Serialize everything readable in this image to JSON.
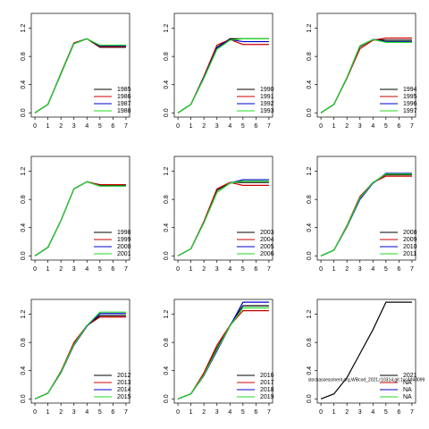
{
  "chart_data": [
    {
      "type": "line",
      "x": [
        0,
        1,
        2,
        3,
        4,
        5,
        6,
        7
      ],
      "xlim": [
        -0.28,
        7.28
      ],
      "ylim": [
        -0.06,
        1.41
      ],
      "xticks": [
        0,
        1,
        2,
        3,
        4,
        5,
        6,
        7
      ],
      "yticks": [
        {
          "value": 0,
          "label": "0.0"
        },
        {
          "value": 0.4,
          "label": "0.4"
        },
        {
          "value": 0.8,
          "label": "0.8"
        },
        {
          "value": 1.2,
          "label": "1.2"
        }
      ],
      "series": [
        {
          "name": "1985",
          "color": "#000000",
          "values": [
            0,
            0.12,
            0.56,
            0.99,
            1.05,
            0.93,
            0.93,
            0.93
          ]
        },
        {
          "name": "1986",
          "color": "#cc0000",
          "values": [
            0,
            0.12,
            0.56,
            0.99,
            1.05,
            0.94,
            0.94,
            0.94
          ]
        },
        {
          "name": "1987",
          "color": "#0000cc",
          "values": [
            0,
            0.12,
            0.55,
            0.98,
            1.05,
            0.95,
            0.95,
            0.95
          ]
        },
        {
          "name": "1988",
          "color": "#22dd22",
          "values": [
            0,
            0.12,
            0.55,
            0.98,
            1.05,
            0.96,
            0.96,
            0.96
          ]
        }
      ]
    },
    {
      "type": "line",
      "x": [
        0,
        1,
        2,
        3,
        4,
        5,
        6,
        7
      ],
      "xlim": [
        -0.28,
        7.28
      ],
      "ylim": [
        -0.06,
        1.41
      ],
      "xticks": [
        0,
        1,
        2,
        3,
        4,
        5,
        6,
        7
      ],
      "yticks": [
        {
          "value": 0,
          "label": "0.0"
        },
        {
          "value": 0.4,
          "label": "0.4"
        },
        {
          "value": 0.8,
          "label": "0.8"
        },
        {
          "value": 1.2,
          "label": "1.2"
        }
      ],
      "series": [
        {
          "name": "1990",
          "color": "#000000",
          "values": [
            0,
            0.12,
            0.5,
            0.93,
            1.05,
            1.05,
            1.05,
            1.05
          ]
        },
        {
          "name": "1991",
          "color": "#cc0000",
          "values": [
            0,
            0.12,
            0.52,
            0.96,
            1.04,
            0.97,
            0.97,
            0.97
          ]
        },
        {
          "name": "1992",
          "color": "#0000cc",
          "values": [
            0,
            0.12,
            0.5,
            0.92,
            1.04,
            1.01,
            1.01,
            1.01
          ]
        },
        {
          "name": "1993",
          "color": "#22dd22",
          "values": [
            0,
            0.12,
            0.49,
            0.9,
            1.03,
            1.05,
            1.05,
            1.05
          ]
        }
      ]
    },
    {
      "type": "line",
      "x": [
        0,
        1,
        2,
        3,
        4,
        5,
        6,
        7
      ],
      "xlim": [
        -0.28,
        7.28
      ],
      "ylim": [
        -0.06,
        1.41
      ],
      "xticks": [
        0,
        1,
        2,
        3,
        4,
        5,
        6,
        7
      ],
      "yticks": [
        {
          "value": 0,
          "label": "0.0"
        },
        {
          "value": 0.4,
          "label": "0.4"
        },
        {
          "value": 0.8,
          "label": "0.8"
        },
        {
          "value": 1.2,
          "label": "1.2"
        }
      ],
      "series": [
        {
          "name": "1994",
          "color": "#000000",
          "values": [
            0,
            0.12,
            0.5,
            0.94,
            1.04,
            1.03,
            1.03,
            1.03
          ]
        },
        {
          "name": "1995",
          "color": "#cc0000",
          "values": [
            0,
            0.12,
            0.49,
            0.91,
            1.03,
            1.06,
            1.06,
            1.06
          ]
        },
        {
          "name": "1996",
          "color": "#0000cc",
          "values": [
            0,
            0.12,
            0.5,
            0.95,
            1.04,
            1.01,
            1.01,
            1.01
          ]
        },
        {
          "name": "1997",
          "color": "#22dd22",
          "values": [
            0,
            0.12,
            0.5,
            0.95,
            1.04,
            1.0,
            1.0,
            1.0
          ]
        }
      ]
    },
    {
      "type": "line",
      "x": [
        0,
        1,
        2,
        3,
        4,
        5,
        6,
        7
      ],
      "xlim": [
        -0.28,
        7.28
      ],
      "ylim": [
        -0.06,
        1.41
      ],
      "xticks": [
        0,
        1,
        2,
        3,
        4,
        5,
        6,
        7
      ],
      "yticks": [
        {
          "value": 0,
          "label": "0.0"
        },
        {
          "value": 0.4,
          "label": "0.4"
        },
        {
          "value": 0.8,
          "label": "0.8"
        },
        {
          "value": 1.2,
          "label": "1.2"
        }
      ],
      "series": [
        {
          "name": "1998",
          "color": "#000000",
          "values": [
            0,
            0.12,
            0.5,
            0.95,
            1.05,
            1.0,
            1.0,
            1.0
          ]
        },
        {
          "name": "1999",
          "color": "#cc0000",
          "values": [
            0,
            0.12,
            0.5,
            0.95,
            1.05,
            1.01,
            1.01,
            1.01
          ]
        },
        {
          "name": "2000",
          "color": "#0000cc",
          "values": [
            0,
            0.12,
            0.5,
            0.95,
            1.05,
            0.99,
            0.99,
            0.99
          ]
        },
        {
          "name": "2001",
          "color": "#22dd22",
          "values": [
            0,
            0.12,
            0.5,
            0.95,
            1.05,
            0.99,
            0.99,
            0.99
          ]
        }
      ]
    },
    {
      "type": "line",
      "x": [
        0,
        1,
        2,
        3,
        4,
        5,
        6,
        7
      ],
      "xlim": [
        -0.28,
        7.28
      ],
      "ylim": [
        -0.06,
        1.41
      ],
      "xticks": [
        0,
        1,
        2,
        3,
        4,
        5,
        6,
        7
      ],
      "yticks": [
        {
          "value": 0,
          "label": "0.0"
        },
        {
          "value": 0.4,
          "label": "0.4"
        },
        {
          "value": 0.8,
          "label": "0.8"
        },
        {
          "value": 1.2,
          "label": "1.2"
        }
      ],
      "series": [
        {
          "name": "2003",
          "color": "#000000",
          "values": [
            0,
            0.1,
            0.48,
            0.93,
            1.04,
            1.04,
            1.04,
            1.04
          ]
        },
        {
          "name": "2004",
          "color": "#cc0000",
          "values": [
            0,
            0.1,
            0.49,
            0.95,
            1.04,
            1.0,
            1.0,
            1.0
          ]
        },
        {
          "name": "2005",
          "color": "#0000cc",
          "values": [
            0,
            0.1,
            0.47,
            0.9,
            1.03,
            1.08,
            1.08,
            1.08
          ]
        },
        {
          "name": "2006",
          "color": "#22dd22",
          "values": [
            0,
            0.1,
            0.47,
            0.9,
            1.03,
            1.06,
            1.06,
            1.06
          ]
        }
      ]
    },
    {
      "type": "line",
      "x": [
        0,
        1,
        2,
        3,
        4,
        5,
        6,
        7
      ],
      "xlim": [
        -0.28,
        7.28
      ],
      "ylim": [
        -0.06,
        1.41
      ],
      "xticks": [
        0,
        1,
        2,
        3,
        4,
        5,
        6,
        7
      ],
      "yticks": [
        {
          "value": 0,
          "label": "0.0"
        },
        {
          "value": 0.4,
          "label": "0.4"
        },
        {
          "value": 0.8,
          "label": "0.8"
        },
        {
          "value": 1.2,
          "label": "1.2"
        }
      ],
      "series": [
        {
          "name": "2008",
          "color": "#000000",
          "values": [
            0,
            0.08,
            0.42,
            0.82,
            1.04,
            1.15,
            1.15,
            1.15
          ]
        },
        {
          "name": "2009",
          "color": "#cc0000",
          "values": [
            0,
            0.08,
            0.43,
            0.84,
            1.04,
            1.13,
            1.13,
            1.13
          ]
        },
        {
          "name": "2010",
          "color": "#0000cc",
          "values": [
            0,
            0.08,
            0.41,
            0.8,
            1.03,
            1.17,
            1.17,
            1.17
          ]
        },
        {
          "name": "2011",
          "color": "#22dd22",
          "values": [
            0,
            0.08,
            0.42,
            0.82,
            1.04,
            1.16,
            1.16,
            1.16
          ]
        }
      ]
    },
    {
      "type": "line",
      "x": [
        0,
        1,
        2,
        3,
        4,
        5,
        6,
        7
      ],
      "xlim": [
        -0.28,
        7.28
      ],
      "ylim": [
        -0.06,
        1.41
      ],
      "xticks": [
        0,
        1,
        2,
        3,
        4,
        5,
        6,
        7
      ],
      "yticks": [
        {
          "value": 0,
          "label": "0.0"
        },
        {
          "value": 0.4,
          "label": "0.4"
        },
        {
          "value": 0.8,
          "label": "0.8"
        },
        {
          "value": 1.2,
          "label": "1.2"
        }
      ],
      "series": [
        {
          "name": "2012",
          "color": "#000000",
          "values": [
            0,
            0.08,
            0.38,
            0.78,
            1.04,
            1.18,
            1.18,
            1.18
          ]
        },
        {
          "name": "2013",
          "color": "#cc0000",
          "values": [
            0,
            0.08,
            0.39,
            0.8,
            1.04,
            1.16,
            1.16,
            1.16
          ]
        },
        {
          "name": "2014",
          "color": "#0000cc",
          "values": [
            0,
            0.08,
            0.37,
            0.76,
            1.03,
            1.21,
            1.21,
            1.21
          ]
        },
        {
          "name": "2015",
          "color": "#22dd22",
          "values": [
            0,
            0.08,
            0.38,
            0.77,
            1.04,
            1.23,
            1.23,
            1.23
          ]
        }
      ]
    },
    {
      "type": "line",
      "x": [
        0,
        1,
        2,
        3,
        4,
        5,
        6,
        7
      ],
      "xlim": [
        -0.28,
        7.28
      ],
      "ylim": [
        -0.06,
        1.41
      ],
      "xticks": [
        0,
        1,
        2,
        3,
        4,
        5,
        6,
        7
      ],
      "yticks": [
        {
          "value": 0,
          "label": "0.0"
        },
        {
          "value": 0.4,
          "label": "0.4"
        },
        {
          "value": 0.8,
          "label": "0.8"
        },
        {
          "value": 1.2,
          "label": "1.2"
        }
      ],
      "series": [
        {
          "name": "2016",
          "color": "#000000",
          "values": [
            0,
            0.07,
            0.35,
            0.72,
            1.04,
            1.32,
            1.32,
            1.32
          ]
        },
        {
          "name": "2017",
          "color": "#cc0000",
          "values": [
            0,
            0.07,
            0.37,
            0.76,
            1.04,
            1.25,
            1.25,
            1.25
          ]
        },
        {
          "name": "2018",
          "color": "#0000cc",
          "values": [
            0,
            0.07,
            0.33,
            0.68,
            1.03,
            1.37,
            1.37,
            1.37
          ]
        },
        {
          "name": "2019",
          "color": "#22dd22",
          "values": [
            0,
            0.07,
            0.34,
            0.7,
            1.03,
            1.29,
            1.29,
            1.29
          ]
        }
      ]
    },
    {
      "type": "line",
      "x": [
        0,
        1,
        2,
        3,
        4,
        5,
        6,
        7
      ],
      "xlim": [
        -0.28,
        7.28
      ],
      "ylim": [
        -0.06,
        1.41
      ],
      "xticks": [
        0,
        1,
        2,
        3,
        4,
        5,
        6,
        7
      ],
      "yticks": [
        {
          "value": 0,
          "label": "0.0"
        },
        {
          "value": 0.4,
          "label": "0.4"
        },
        {
          "value": 0.8,
          "label": "0.8"
        },
        {
          "value": 1.2,
          "label": "1.2"
        }
      ],
      "annotation": "stockassessment.org,WBcod_2021,r10314,git:1cc4d4d099",
      "series": [
        {
          "name": "2021",
          "color": "#000000",
          "values": [
            0,
            0.07,
            0.3,
            0.64,
            0.98,
            1.37,
            1.37,
            1.37
          ]
        },
        {
          "name": "NA",
          "color": "#cc0000",
          "values": [
            null,
            null,
            null,
            null,
            null,
            null,
            null,
            null
          ]
        },
        {
          "name": "NA",
          "color": "#0000cc",
          "values": [
            null,
            null,
            null,
            null,
            null,
            null,
            null,
            null
          ]
        },
        {
          "name": "NA",
          "color": "#22dd22",
          "values": [
            null,
            null,
            null,
            null,
            null,
            null,
            null,
            null
          ]
        }
      ]
    }
  ]
}
